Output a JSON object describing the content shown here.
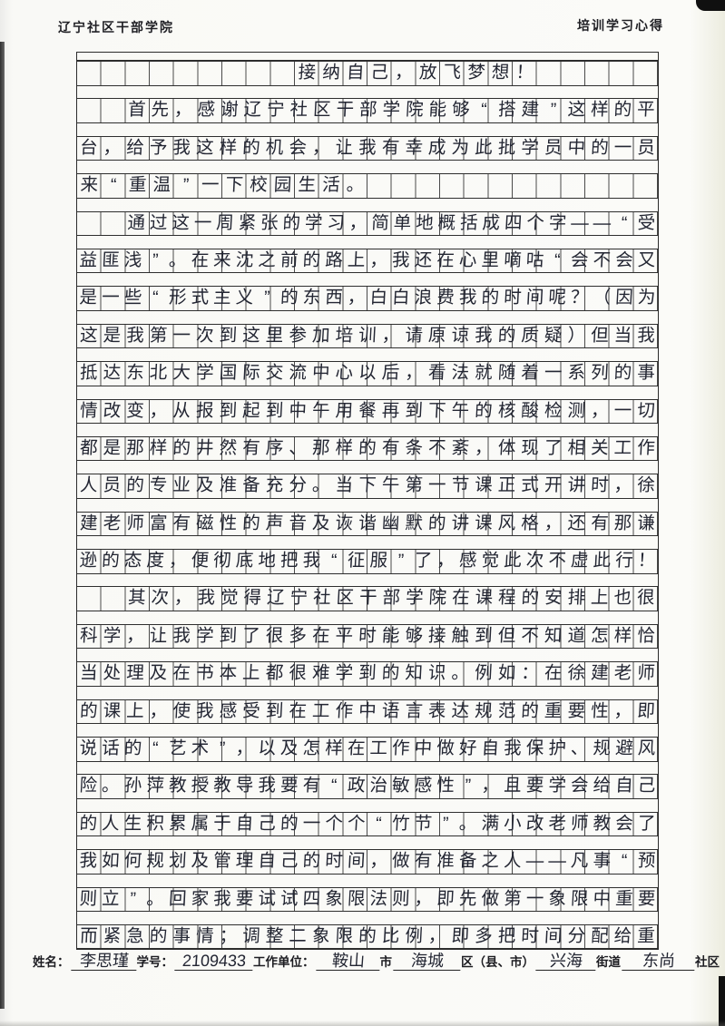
{
  "header": {
    "left": "辽宁社区干部学院",
    "right": "培训学习心得"
  },
  "manuscript": {
    "columns": 24,
    "rows": [
      {
        "indent": 9,
        "text": "接纳自己，放飞梦想！"
      },
      {
        "indent": 2,
        "text": "首先，感谢辽宁社区干部学院能够“搭建”这样的平"
      },
      {
        "indent": 0,
        "text": "台，给予我这样的机会，让我有幸成为此批学员中的一员"
      },
      {
        "indent": 0,
        "text": "来“重温”一下校园生活。"
      },
      {
        "indent": 2,
        "text": "通过这一周紧张的学习，简单地概括成四个字——“受"
      },
      {
        "indent": 0,
        "text": "益匪浅”。在来沈之前的路上，我还在心里嘀咕“会不会又"
      },
      {
        "indent": 0,
        "text": "是一些“形式主义”的东西，白白浪费我的时间呢？（因为"
      },
      {
        "indent": 0,
        "text": "这是我第一次到这里参加培训，请原谅我的质疑）但当我"
      },
      {
        "indent": 0,
        "text": "抵达东北大学国际交流中心以后，看法就随着一系列的事"
      },
      {
        "indent": 0,
        "text": "情改变，从报到起到中午用餐再到下午的核酸检测，一切"
      },
      {
        "indent": 0,
        "text": "都是那样的井然有序、那样的有条不紊，体现了相关工作"
      },
      {
        "indent": 0,
        "text": "人员的专业及准备充分。当下午第一节课正式开讲时，徐"
      },
      {
        "indent": 0,
        "text": "建老师富有磁性的声音及诙谐幽默的讲课风格，还有那谦"
      },
      {
        "indent": 0,
        "text": "逊的态度，便彻底地把我“征服”了，感觉此次不虚此行！"
      },
      {
        "indent": 2,
        "text": "其次，我觉得辽宁社区干部学院在课程的安排上也很"
      },
      {
        "indent": 0,
        "text": "科学，让我学到了很多在平时能够接触到但不知道怎样恰"
      },
      {
        "indent": 0,
        "text": "当处理及在书本上都很难学到的知识。例如：在徐建老师"
      },
      {
        "indent": 0,
        "text": "的课上，使我感受到在工作中语言表达规范的重要性，即"
      },
      {
        "indent": 0,
        "text": "说话的“艺术”，以及怎样在工作中做好自我保护、规避风"
      },
      {
        "indent": 0,
        "text": "险。孙萍教授教导我要有“政治敏感性”，且要学会给自己"
      },
      {
        "indent": 0,
        "text": "的人生积累属于自己的一个个“竹节”。满小改老师教会了"
      },
      {
        "indent": 0,
        "text": "我如何规划及管理自己的时间，做有准备之人——凡事“预"
      },
      {
        "indent": 0,
        "text": "则立”。回家我要试试四象限法则，即先做第一象限中重要"
      },
      {
        "indent": 0,
        "text": "而紧急的事情；调整二象限的比例，即多把时间分配给重"
      }
    ]
  },
  "footer": {
    "name_label": "姓名：",
    "name_value": "李思瑾",
    "id_label": "学号：",
    "id_value": "2109433",
    "unit_label": "工作单位：",
    "city_value": "鞍山",
    "city_suffix": "市",
    "district_value": "海城",
    "district_suffix": "区（县、市）",
    "street_value": "兴海",
    "street_suffix": "街道",
    "community_value": "东尚",
    "community_suffix": "社区"
  },
  "colors": {
    "ink": "#232633",
    "grid_line": "#2e2e2e",
    "paper": "#fbfbf8"
  }
}
